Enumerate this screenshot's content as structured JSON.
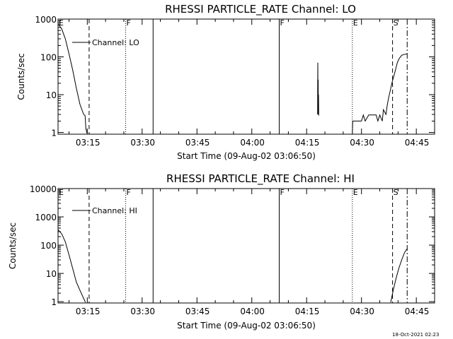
{
  "chart_data": [
    {
      "type": "line",
      "title": "RHESSI PARTICLE_RATE Channel: LO",
      "xlabel": "Start Time (09-Aug-02 03:06:50)",
      "ylabel": "Counts/sec",
      "y_scale": "log",
      "ylim": [
        0.9,
        1000
      ],
      "xlim_minutes": [
        0,
        103
      ],
      "x_ticks": [
        "03:15",
        "03:30",
        "03:45",
        "04:00",
        "04:15",
        "04:30",
        "04:45"
      ],
      "y_ticks": [
        "1",
        "10",
        "100",
        "1000"
      ],
      "legend": "Channel: LO",
      "legend_position": "top-left",
      "series": [
        {
          "name": "Channel: LO",
          "x_minutes": [
            0,
            1,
            2,
            3,
            4,
            5,
            6,
            7,
            7.4,
            7.6,
            7.9
          ],
          "y": [
            750,
            550,
            300,
            120,
            45,
            15,
            5.5,
            3,
            2.8,
            1.3,
            0.95
          ]
        },
        {
          "x_minutes": [
            71.0,
            71.05,
            71.1,
            71.15,
            71.2,
            71.25,
            71.3
          ],
          "y": [
            3,
            70,
            5,
            25,
            3,
            10,
            2.8
          ]
        },
        {
          "x_minutes": [
            80.5,
            80.6,
            83.0,
            83.5,
            84.0,
            85.0,
            87.0,
            87.5,
            88.0,
            88.7,
            89.0,
            89.7,
            90.0,
            90.4,
            90.8,
            91.3,
            91.8,
            92.3,
            92.8,
            93.3,
            94.0,
            94.5,
            95.5
          ],
          "y": [
            0.9,
            2.0,
            2.0,
            2.9,
            2.0,
            2.9,
            2.9,
            2.0,
            2.9,
            2.0,
            4.0,
            3.0,
            5.0,
            8.0,
            12,
            20,
            30,
            45,
            70,
            90,
            110,
            115,
            120
          ]
        }
      ],
      "event_markers": [
        {
          "label": "E",
          "x_minutes": 0,
          "style": "dotted"
        },
        {
          "label": "",
          "x_minutes": 8.5,
          "style": "dashed"
        },
        {
          "label": "F",
          "x_minutes": 18.5,
          "style": "dotted"
        },
        {
          "label": "",
          "x_minutes": 26.0,
          "style": "solid"
        },
        {
          "label": "F",
          "x_minutes": 60.5,
          "style": "solid"
        },
        {
          "label": "E",
          "x_minutes": 80.5,
          "style": "dotted"
        },
        {
          "label": "S",
          "x_minutes": 91.5,
          "style": "dashed"
        },
        {
          "label": "",
          "x_minutes": 95.5,
          "style": "dashdot"
        }
      ]
    },
    {
      "type": "line",
      "title": "RHESSI PARTICLE_RATE Channel: HI",
      "xlabel": "Start Time (09-Aug-02 03:06:50)",
      "ylabel": "Counts/sec",
      "y_scale": "log",
      "ylim": [
        0.9,
        10000
      ],
      "xlim_minutes": [
        0,
        103
      ],
      "x_ticks": [
        "03:15",
        "03:30",
        "03:45",
        "04:00",
        "04:15",
        "04:30",
        "04:45"
      ],
      "y_ticks": [
        "1",
        "10",
        "100",
        "1000",
        "10000"
      ],
      "legend": "Channel: HI",
      "legend_position": "top-left",
      "series": [
        {
          "name": "Channel: HI",
          "x_minutes": [
            0,
            1,
            2,
            3,
            4,
            5,
            6,
            7,
            7.5
          ],
          "y": [
            350,
            250,
            130,
            45,
            15,
            5,
            2.5,
            1.3,
            0.95
          ]
        },
        {
          "x_minutes": [
            91.0,
            91.3,
            91.8,
            92.5,
            93.2,
            94.0,
            94.8,
            95.5
          ],
          "y": [
            0.95,
            1.5,
            3,
            7,
            15,
            30,
            55,
            75
          ]
        }
      ],
      "event_markers": [
        {
          "label": "E",
          "x_minutes": 0,
          "style": "dotted"
        },
        {
          "label": "",
          "x_minutes": 8.5,
          "style": "dashed"
        },
        {
          "label": "F",
          "x_minutes": 18.5,
          "style": "dotted"
        },
        {
          "label": "",
          "x_minutes": 26.0,
          "style": "solid"
        },
        {
          "label": "F",
          "x_minutes": 60.5,
          "style": "solid"
        },
        {
          "label": "E",
          "x_minutes": 80.5,
          "style": "dotted"
        },
        {
          "label": "S",
          "x_minutes": 91.5,
          "style": "dashed"
        },
        {
          "label": "",
          "x_minutes": 95.5,
          "style": "dashdot"
        }
      ]
    }
  ],
  "footer": {
    "timestamp": "18-Oct-2021 02:23"
  }
}
